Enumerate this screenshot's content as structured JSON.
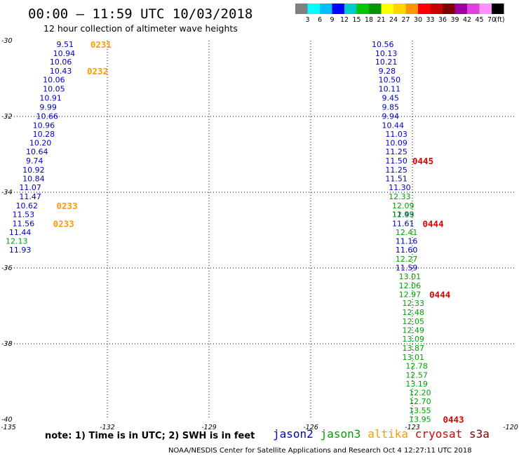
{
  "header": {
    "title": "00:00 – 11:59 UTC 10/03/2018",
    "subtitle": "12 hour collection of altimeter wave heights"
  },
  "color_scale": {
    "colors": [
      "#808080",
      "#00ffff",
      "#00bfff",
      "#0000ff",
      "#00c8c8",
      "#00c800",
      "#009600",
      "#ffff00",
      "#ffd700",
      "#ff9600",
      "#ff0000",
      "#c80000",
      "#800000",
      "#a000a0",
      "#e040e0",
      "#ff90ff",
      "#000000"
    ],
    "labels": [
      "3",
      "6",
      "9",
      "12",
      "15",
      "18",
      "21",
      "24",
      "27",
      "30",
      "33",
      "36",
      "39",
      "42",
      "45",
      "70"
    ],
    "unit": "(ft)"
  },
  "footer": {
    "note": "note:  1) Time is in UTC; 2) SWH is in feet",
    "credit": "NOAA/NESDIS Center for Satellite Applications and Research    Oct  4 12:27:11 UTC 2018"
  },
  "chart_data": {
    "type": "scatter",
    "xlim": [
      -135,
      -120
    ],
    "ylim": [
      -40,
      -30
    ],
    "x_ticks": [
      -135,
      -132,
      -129,
      -126,
      -123,
      -120
    ],
    "y_ticks": [
      -30,
      -32,
      -34,
      -36,
      -38,
      -40
    ],
    "legend": [
      {
        "name": "jason2",
        "color": "#0000c8"
      },
      {
        "name": "jason3",
        "color": "#00a000"
      },
      {
        "name": "altika",
        "color": "#ff9900"
      },
      {
        "name": "cryosat",
        "color": "#e00000"
      },
      {
        "name": "s3a",
        "color": "#800000"
      }
    ],
    "series": [
      {
        "name": "jason2",
        "color": "#0000c8",
        "points": [
          {
            "x": -133.5,
            "y": -30.09,
            "v": "9.51"
          },
          {
            "x": -133.6,
            "y": -30.33,
            "v": "10.94"
          },
          {
            "x": -133.7,
            "y": -30.56,
            "v": "10.06"
          },
          {
            "x": -133.7,
            "y": -30.8,
            "v": "10.43"
          },
          {
            "x": -133.9,
            "y": -31.03,
            "v": "10.06"
          },
          {
            "x": -133.9,
            "y": -31.27,
            "v": "10.05"
          },
          {
            "x": -134.0,
            "y": -31.51,
            "v": "10.91"
          },
          {
            "x": -134.0,
            "y": -31.75,
            "v": "9.99"
          },
          {
            "x": -134.1,
            "y": -31.99,
            "v": "10.66"
          },
          {
            "x": -134.2,
            "y": -32.23,
            "v": "10.96"
          },
          {
            "x": -134.2,
            "y": -32.46,
            "v": "10.28"
          },
          {
            "x": -134.3,
            "y": -32.69,
            "v": "10.20"
          },
          {
            "x": -134.4,
            "y": -32.93,
            "v": "10.64"
          },
          {
            "x": -134.4,
            "y": -33.17,
            "v": "9.74"
          },
          {
            "x": -134.5,
            "y": -33.41,
            "v": "10.92"
          },
          {
            "x": -134.5,
            "y": -33.64,
            "v": "10.84"
          },
          {
            "x": -134.6,
            "y": -33.87,
            "v": "11.07"
          },
          {
            "x": -134.6,
            "y": -34.11,
            "v": "11.47"
          },
          {
            "x": -134.7,
            "y": -34.35,
            "v": "10.62"
          },
          {
            "x": -134.8,
            "y": -34.58,
            "v": "11.53"
          },
          {
            "x": -134.8,
            "y": -34.82,
            "v": "11.56"
          },
          {
            "x": -134.9,
            "y": -35.06,
            "v": "11.44"
          },
          {
            "x": -134.9,
            "y": -35.52,
            "v": "11.93"
          },
          {
            "x": -124.2,
            "y": -30.09,
            "v": "10.56"
          },
          {
            "x": -124.1,
            "y": -30.33,
            "v": "10.13"
          },
          {
            "x": -124.1,
            "y": -30.56,
            "v": "10.21"
          },
          {
            "x": -124.0,
            "y": -30.8,
            "v": "9.28"
          },
          {
            "x": -124.0,
            "y": -31.03,
            "v": "10.50"
          },
          {
            "x": -124.0,
            "y": -31.27,
            "v": "10.11"
          },
          {
            "x": -123.9,
            "y": -31.51,
            "v": "9.45"
          },
          {
            "x": -123.9,
            "y": -31.75,
            "v": "9.85"
          },
          {
            "x": -123.9,
            "y": -31.99,
            "v": "9.94"
          },
          {
            "x": -123.9,
            "y": -32.23,
            "v": "10.44"
          },
          {
            "x": -123.8,
            "y": -32.46,
            "v": "11.03"
          },
          {
            "x": -123.8,
            "y": -32.69,
            "v": "10.09"
          },
          {
            "x": -123.8,
            "y": -32.93,
            "v": "11.25"
          },
          {
            "x": -123.8,
            "y": -33.17,
            "v": "11.50"
          },
          {
            "x": -123.8,
            "y": -33.41,
            "v": "11.25"
          },
          {
            "x": -123.8,
            "y": -33.64,
            "v": "11.51"
          },
          {
            "x": -123.7,
            "y": -33.87,
            "v": "11.30"
          },
          {
            "x": -123.6,
            "y": -34.58,
            "v": "11.93"
          },
          {
            "x": -123.6,
            "y": -34.82,
            "v": "11.61"
          },
          {
            "x": -123.5,
            "y": -35.29,
            "v": "11.16"
          },
          {
            "x": -123.5,
            "y": -35.52,
            "v": "11.60"
          },
          {
            "x": -123.5,
            "y": -35.99,
            "v": "11.59"
          }
        ]
      },
      {
        "name": "jason3",
        "color": "#00a000",
        "points": [
          {
            "x": -135.0,
            "y": -35.29,
            "v": "12.13"
          },
          {
            "x": -123.7,
            "y": -34.11,
            "v": "12.33"
          },
          {
            "x": -123.6,
            "y": -34.35,
            "v": "12.09"
          },
          {
            "x": -123.6,
            "y": -34.58,
            "v": "12.49"
          },
          {
            "x": -123.5,
            "y": -35.06,
            "v": "12.41"
          },
          {
            "x": -123.5,
            "y": -35.76,
            "v": "12.27"
          },
          {
            "x": -123.4,
            "y": -36.22,
            "v": "13.01"
          },
          {
            "x": -123.4,
            "y": -36.46,
            "v": "12.06"
          },
          {
            "x": -123.4,
            "y": -36.69,
            "v": "12.97"
          },
          {
            "x": -123.3,
            "y": -36.93,
            "v": "12.33"
          },
          {
            "x": -123.3,
            "y": -37.17,
            "v": "12.48"
          },
          {
            "x": -123.3,
            "y": -37.41,
            "v": "12.05"
          },
          {
            "x": -123.3,
            "y": -37.64,
            "v": "12.49"
          },
          {
            "x": -123.3,
            "y": -37.87,
            "v": "13.09"
          },
          {
            "x": -123.3,
            "y": -38.11,
            "v": "13.87"
          },
          {
            "x": -123.3,
            "y": -38.35,
            "v": "13.01"
          },
          {
            "x": -123.2,
            "y": -38.58,
            "v": "12.78"
          },
          {
            "x": -123.2,
            "y": -38.82,
            "v": "12.57"
          },
          {
            "x": -123.2,
            "y": -39.06,
            "v": "13.19"
          },
          {
            "x": -123.1,
            "y": -39.29,
            "v": "12.20"
          },
          {
            "x": -123.1,
            "y": -39.52,
            "v": "12.70"
          },
          {
            "x": -123.1,
            "y": -39.76,
            "v": "13.55"
          },
          {
            "x": -123.1,
            "y": -39.99,
            "v": "13.95"
          }
        ]
      },
      {
        "name": "altika",
        "color": "#ff9900",
        "times": [
          {
            "x": -132.5,
            "y": -30.09,
            "v": "0231"
          },
          {
            "x": -132.6,
            "y": -30.8,
            "v": "0232"
          },
          {
            "x": -133.5,
            "y": -34.35,
            "v": "0233"
          },
          {
            "x": -133.6,
            "y": -34.82,
            "v": "0233"
          }
        ]
      },
      {
        "name": "cryosat",
        "color": "#e00000",
        "times": [
          {
            "x": -123.0,
            "y": -33.17,
            "v": "0445"
          },
          {
            "x": -122.7,
            "y": -34.82,
            "v": "0444"
          },
          {
            "x": -122.5,
            "y": -36.69,
            "v": "0444"
          },
          {
            "x": -122.1,
            "y": -39.99,
            "v": "0443"
          }
        ]
      }
    ]
  }
}
